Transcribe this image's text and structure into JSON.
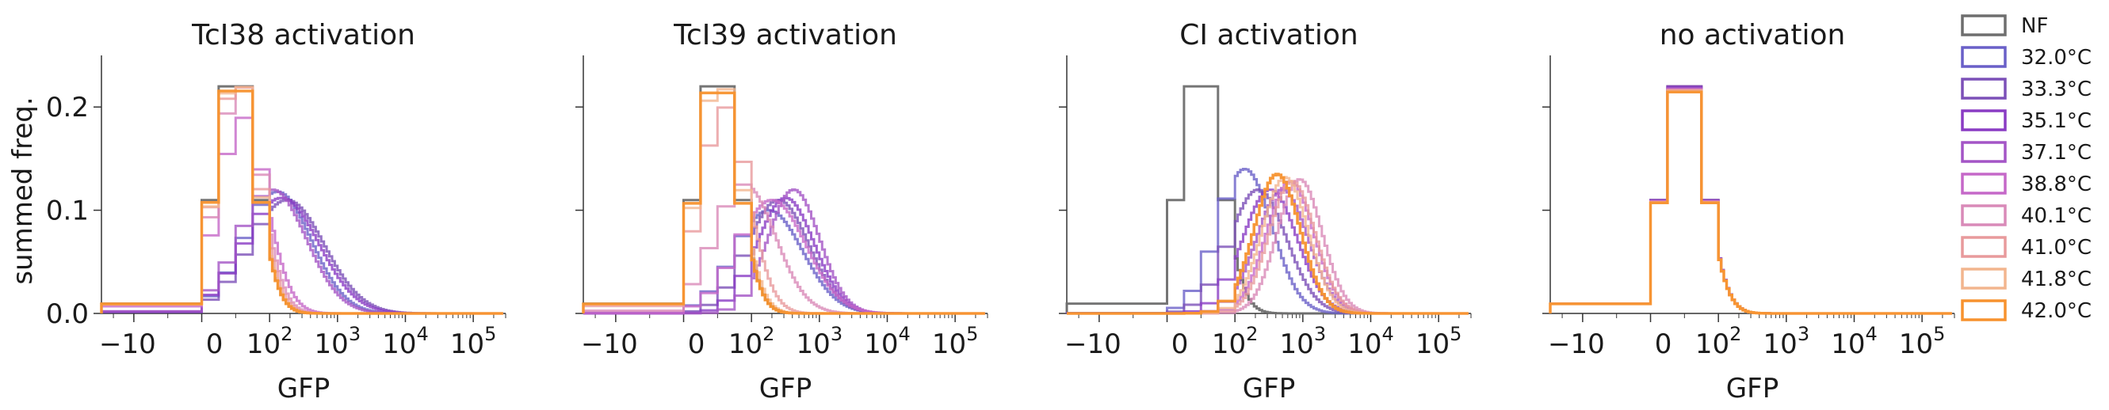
{
  "chart_data": {
    "type": "histogram-step",
    "xscale": "symlog",
    "xlim": [
      -300,
      300000
    ],
    "ylim": [
      0,
      0.25
    ],
    "xticks": [
      {
        "value": -100,
        "label": "−10",
        "sup": ""
      },
      {
        "value": 0,
        "label": "0",
        "sup": ""
      },
      {
        "value": 100,
        "label": "10",
        "sup": "2"
      },
      {
        "value": 1000,
        "label": "10",
        "sup": "3"
      },
      {
        "value": 10000,
        "label": "10",
        "sup": "4"
      },
      {
        "value": 100000,
        "label": "10",
        "sup": "5"
      }
    ],
    "yticks": [
      {
        "value": 0.0,
        "label": "0.0"
      },
      {
        "value": 0.1,
        "label": "0.1"
      },
      {
        "value": 0.2,
        "label": "0.2"
      }
    ],
    "xlabel": "GFP",
    "ylabel": "summed freq.",
    "legend": {
      "placement": "right",
      "entries": [
        {
          "label": "NF",
          "color": "#6e6e6e"
        },
        {
          "label": "32.0°C",
          "color": "#6a60c8"
        },
        {
          "label": "33.3°C",
          "color": "#7c50b8"
        },
        {
          "label": "35.1°C",
          "color": "#8a3cc4"
        },
        {
          "label": "37.1°C",
          "color": "#a455c6"
        },
        {
          "label": "38.8°C",
          "color": "#c568c8"
        },
        {
          "label": "40.1°C",
          "color": "#d98ab8"
        },
        {
          "label": "41.0°C",
          "color": "#e89a9c"
        },
        {
          "label": "41.8°C",
          "color": "#f2b58e"
        },
        {
          "label": "42.0°C",
          "color": "#f7922e"
        }
      ]
    },
    "panels": [
      {
        "title": "TcI38 activation",
        "show_ylabels": true,
        "series": [
          {
            "name": "NF",
            "peak_x": 50,
            "peak_y": 0.24,
            "width": 0.3
          },
          {
            "name": "32.0°C",
            "peak_x": 130,
            "peak_y": 0.118,
            "width": 0.5
          },
          {
            "name": "33.3°C",
            "peak_x": 180,
            "peak_y": 0.11,
            "width": 0.55
          },
          {
            "name": "35.1°C",
            "peak_x": 150,
            "peak_y": 0.112,
            "width": 0.55
          },
          {
            "name": "37.1°C",
            "peak_x": 110,
            "peak_y": 0.12,
            "width": 0.5
          },
          {
            "name": "38.8°C",
            "peak_x": 60,
            "peak_y": 0.19,
            "width": 0.35
          },
          {
            "name": "40.1°C",
            "peak_x": 55,
            "peak_y": 0.225,
            "width": 0.32
          },
          {
            "name": "41.0°C",
            "peak_x": 52,
            "peak_y": 0.232,
            "width": 0.31
          },
          {
            "name": "41.8°C",
            "peak_x": 51,
            "peak_y": 0.236,
            "width": 0.3
          },
          {
            "name": "42.0°C",
            "peak_x": 50,
            "peak_y": 0.235,
            "width": 0.3
          }
        ]
      },
      {
        "title": "TcI39 activation",
        "show_ylabels": false,
        "series": [
          {
            "name": "NF",
            "peak_x": 50,
            "peak_y": 0.24,
            "width": 0.3
          },
          {
            "name": "32.0°C",
            "peak_x": 180,
            "peak_y": 0.1,
            "width": 0.5
          },
          {
            "name": "33.3°C",
            "peak_x": 250,
            "peak_y": 0.11,
            "width": 0.45
          },
          {
            "name": "35.1°C",
            "peak_x": 320,
            "peak_y": 0.112,
            "width": 0.42
          },
          {
            "name": "37.1°C",
            "peak_x": 420,
            "peak_y": 0.12,
            "width": 0.38
          },
          {
            "name": "38.8°C",
            "peak_x": 200,
            "peak_y": 0.11,
            "width": 0.5
          },
          {
            "name": "40.1°C",
            "peak_x": 90,
            "peak_y": 0.125,
            "width": 0.45
          },
          {
            "name": "41.0°C",
            "peak_x": 60,
            "peak_y": 0.2,
            "width": 0.35
          },
          {
            "name": "41.8°C",
            "peak_x": 52,
            "peak_y": 0.23,
            "width": 0.31
          },
          {
            "name": "42.0°C",
            "peak_x": 50,
            "peak_y": 0.233,
            "width": 0.3
          }
        ]
      },
      {
        "title": "CI activation",
        "show_ylabels": false,
        "series": [
          {
            "name": "NF",
            "peak_x": 50,
            "peak_y": 0.24,
            "width": 0.3
          },
          {
            "name": "32.0°C",
            "peak_x": 140,
            "peak_y": 0.14,
            "width": 0.4
          },
          {
            "name": "33.3°C",
            "peak_x": 220,
            "peak_y": 0.12,
            "width": 0.42
          },
          {
            "name": "35.1°C",
            "peak_x": 330,
            "peak_y": 0.12,
            "width": 0.4
          },
          {
            "name": "37.1°C",
            "peak_x": 500,
            "peak_y": 0.12,
            "width": 0.38
          },
          {
            "name": "38.8°C",
            "peak_x": 650,
            "peak_y": 0.128,
            "width": 0.35
          },
          {
            "name": "40.1°C",
            "peak_x": 900,
            "peak_y": 0.13,
            "width": 0.33
          },
          {
            "name": "41.0°C",
            "peak_x": 700,
            "peak_y": 0.128,
            "width": 0.34
          },
          {
            "name": "41.8°C",
            "peak_x": 550,
            "peak_y": 0.132,
            "width": 0.34
          },
          {
            "name": "42.0°C",
            "peak_x": 420,
            "peak_y": 0.135,
            "width": 0.34
          }
        ]
      },
      {
        "title": "no activation",
        "show_ylabels": false,
        "series": [
          {
            "name": "NF",
            "peak_x": 50,
            "peak_y": 0.24,
            "width": 0.3
          },
          {
            "name": "32.0°C",
            "peak_x": 50,
            "peak_y": 0.238,
            "width": 0.3
          },
          {
            "name": "33.3°C",
            "peak_x": 50,
            "peak_y": 0.239,
            "width": 0.3
          },
          {
            "name": "35.1°C",
            "peak_x": 50,
            "peak_y": 0.24,
            "width": 0.3
          },
          {
            "name": "37.1°C",
            "peak_x": 50,
            "peak_y": 0.238,
            "width": 0.3
          },
          {
            "name": "38.8°C",
            "peak_x": 50,
            "peak_y": 0.237,
            "width": 0.3
          },
          {
            "name": "40.1°C",
            "peak_x": 50,
            "peak_y": 0.236,
            "width": 0.3
          },
          {
            "name": "41.0°C",
            "peak_x": 50,
            "peak_y": 0.236,
            "width": 0.3
          },
          {
            "name": "41.8°C",
            "peak_x": 50,
            "peak_y": 0.235,
            "width": 0.3
          },
          {
            "name": "42.0°C",
            "peak_x": 50,
            "peak_y": 0.234,
            "width": 0.3
          }
        ]
      }
    ]
  }
}
